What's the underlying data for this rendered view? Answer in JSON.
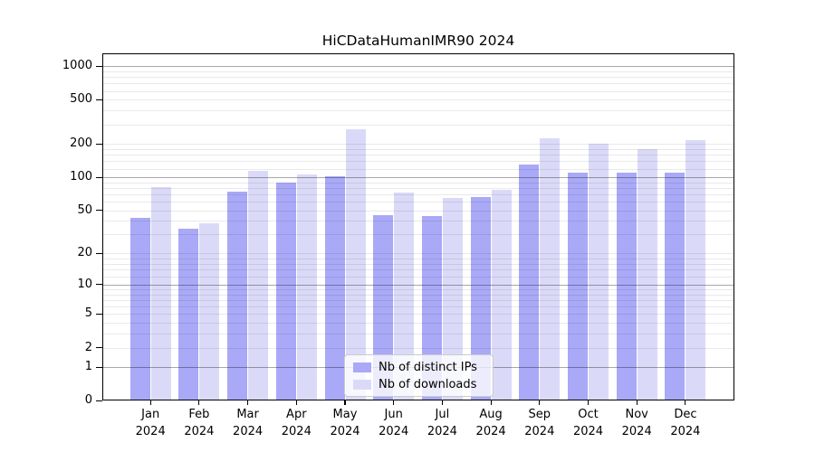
{
  "chart_data": {
    "type": "bar",
    "title": "HiCDataHumanIMR90 2024",
    "x_categories": [
      "Jan",
      "Feb",
      "Mar",
      "Apr",
      "May",
      "Jun",
      "Jul",
      "Aug",
      "Sep",
      "Oct",
      "Nov",
      "Dec"
    ],
    "x_year": "2024",
    "series": [
      {
        "name": "Nb of distinct IPs",
        "color": "#a9a9f7",
        "values": [
          42,
          33,
          72,
          88,
          100,
          44,
          43,
          64,
          128,
          108,
          107,
          108
        ]
      },
      {
        "name": "Nb of downloads",
        "color": "#dadaf8",
        "values": [
          80,
          37,
          112,
          104,
          265,
          71,
          63,
          75,
          218,
          196,
          175,
          212
        ]
      }
    ],
    "y_axis": {
      "scale": "log10(1+x)",
      "ticks": [
        0,
        1,
        2,
        5,
        10,
        20,
        50,
        100,
        200,
        500,
        1000
      ],
      "major_gridlines": [
        1,
        10,
        100,
        1000
      ],
      "minor_gridlines": [
        2,
        3,
        4,
        5,
        6,
        7,
        8,
        9,
        12,
        14,
        16,
        18,
        20,
        30,
        40,
        50,
        60,
        70,
        80,
        90,
        120,
        140,
        160,
        180,
        200,
        300,
        400,
        500,
        600,
        700,
        800,
        900
      ],
      "ylim": [
        0,
        1280
      ]
    },
    "legend_position": "bottom-center",
    "grid": true,
    "background_color": "#ffffff",
    "spine_color": "#000000"
  }
}
